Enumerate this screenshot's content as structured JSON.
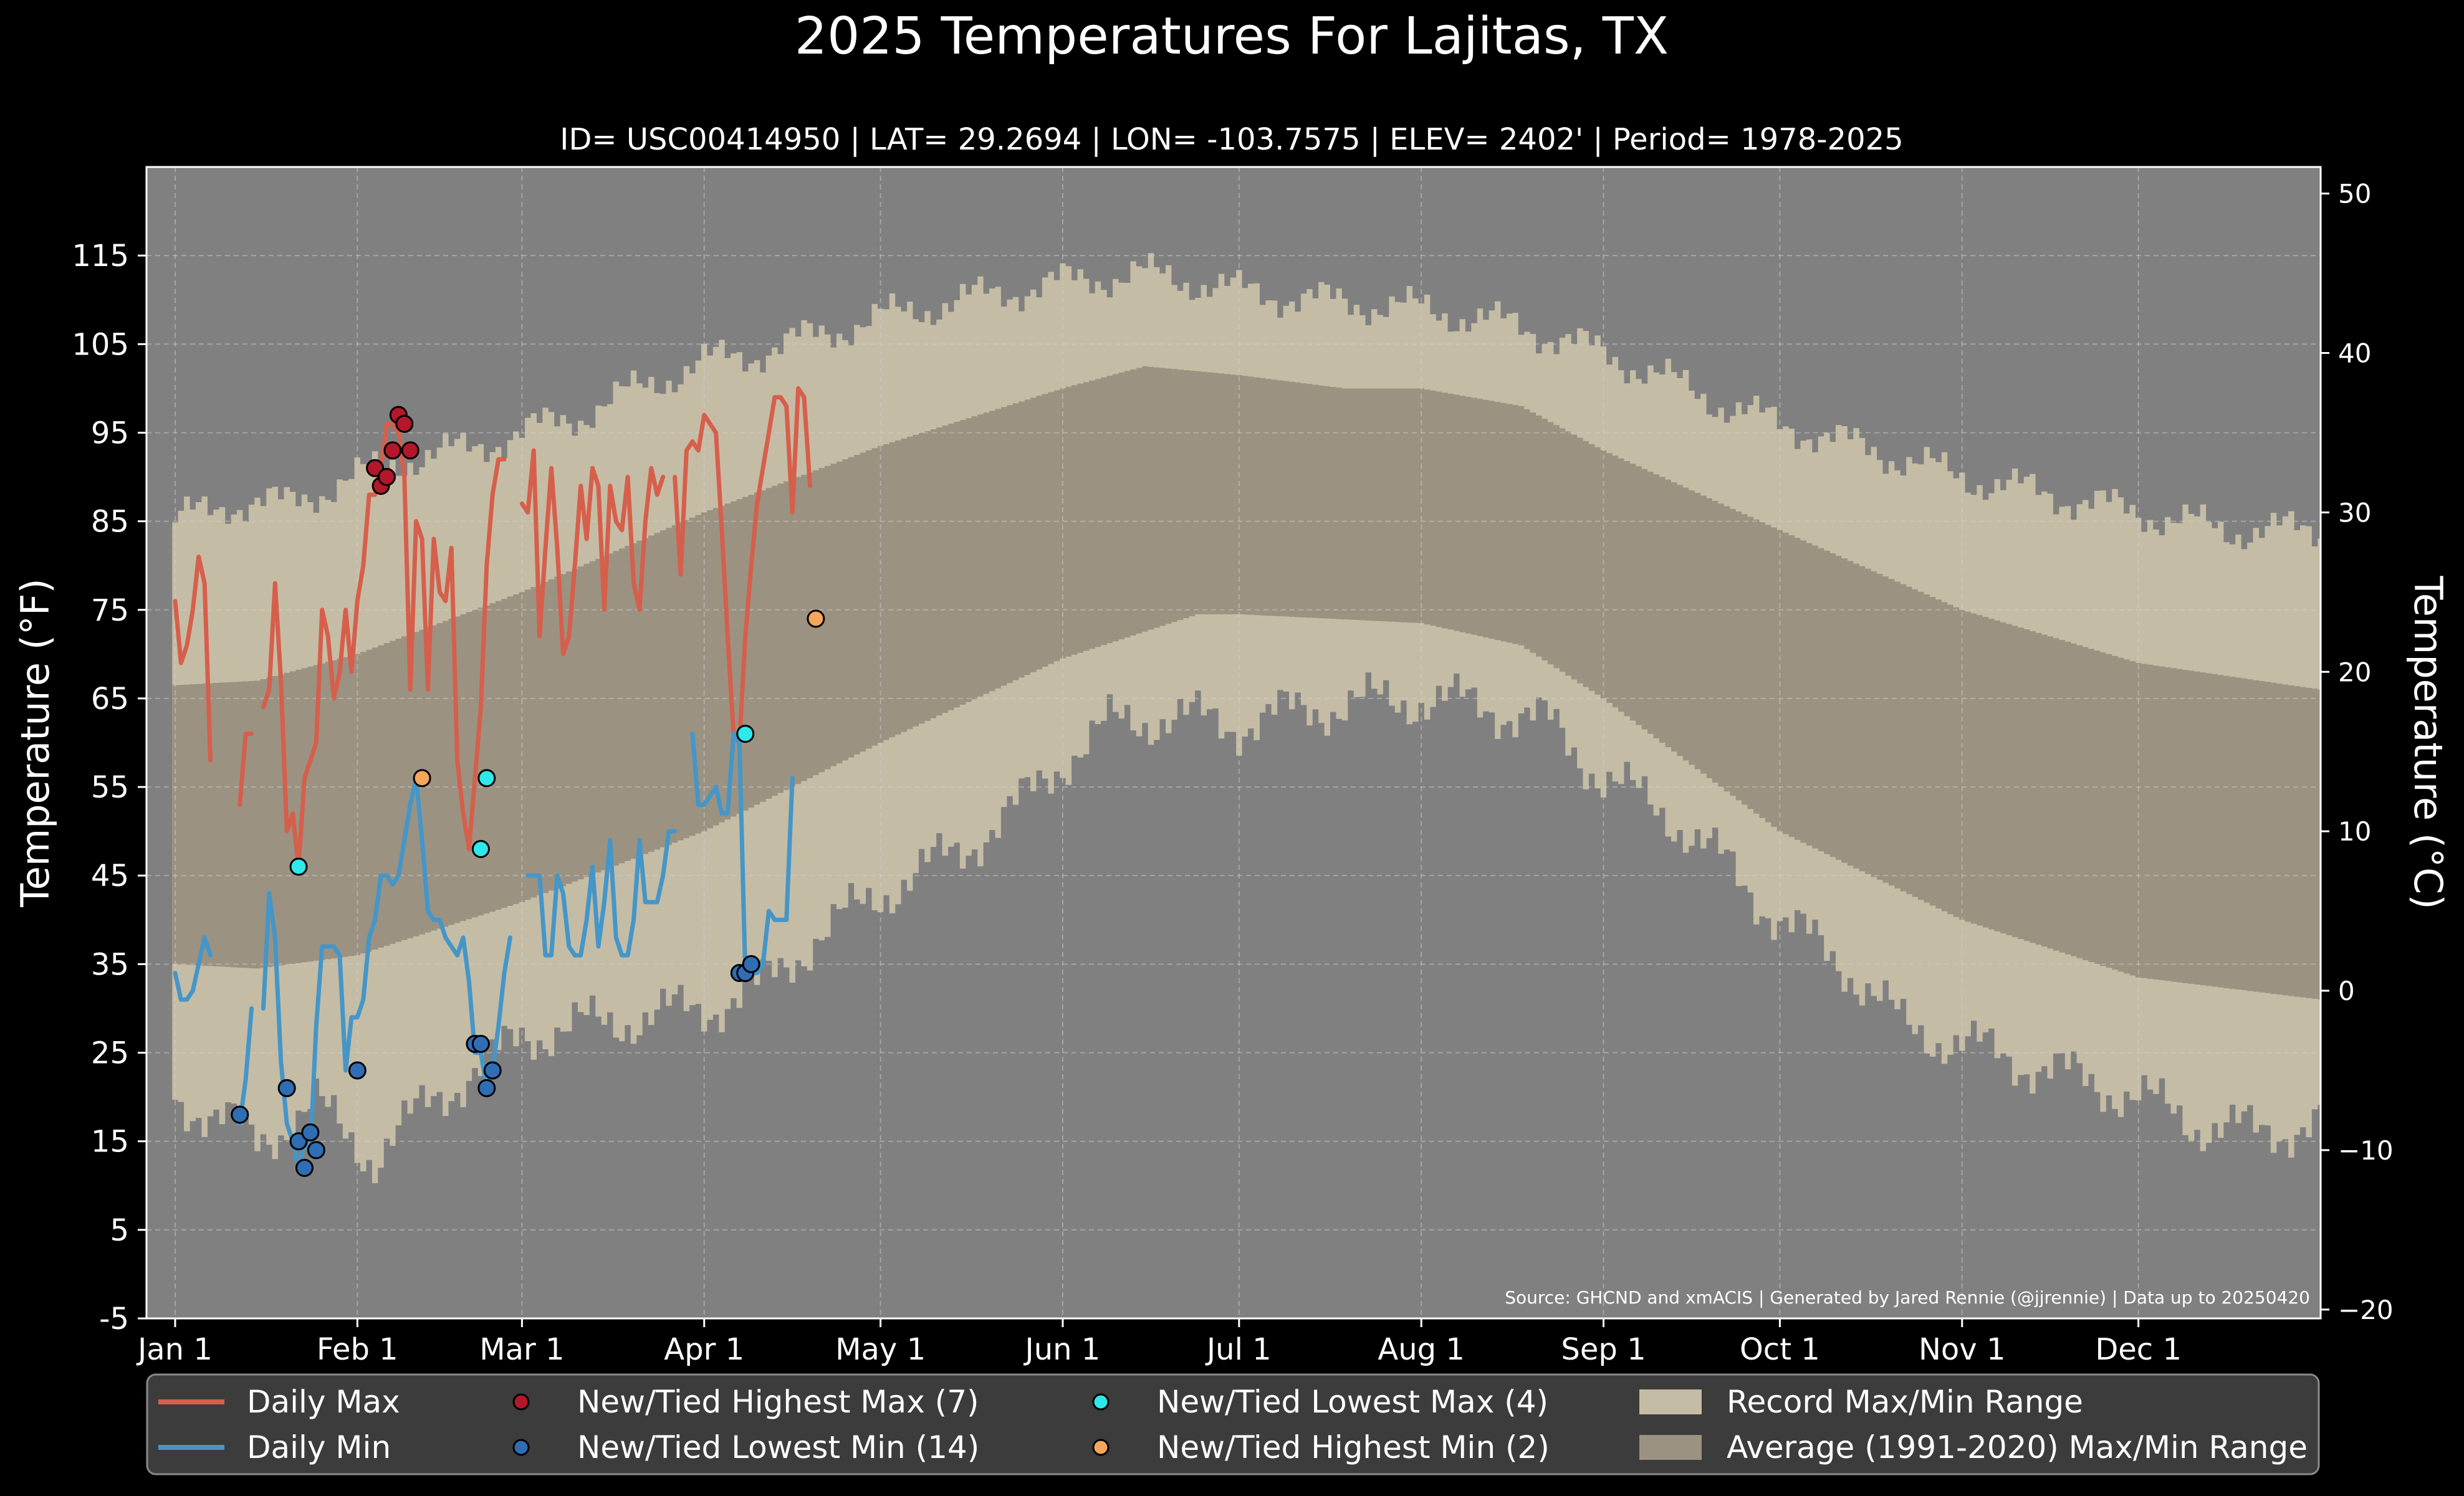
{
  "chart_data": {
    "type": "line",
    "title": "2025 Temperatures For Lajitas, TX",
    "subtitle": "ID= USC00414950 | LAT= 29.2694 | LON= -103.7575 | ELEV= 2402' | Period= 1978-2025",
    "ylabel_left": "Temperature ($^\\circ$F)",
    "ylabel_right": "Temperature ($^\\circ$C)",
    "ylabel_left_text": "Temperature (°F)",
    "ylabel_right_text": "Temperature (°C)",
    "source": "Source: GHCND and xmACIS | Generated by Jared Rennie (@jjrennie) | Data up to 20250420",
    "xlim": [
      1,
      366
    ],
    "ylim": [
      -5,
      125
    ],
    "ylim_c": [
      -20,
      51.67
    ],
    "grid": true,
    "legend_position": "bottom",
    "x_ticks": [
      {
        "day": 1,
        "label": "Jan 1"
      },
      {
        "day": 32,
        "label": "Feb 1"
      },
      {
        "day": 60,
        "label": "Mar 1"
      },
      {
        "day": 91,
        "label": "Apr 1"
      },
      {
        "day": 121,
        "label": "May 1"
      },
      {
        "day": 152,
        "label": "Jun 1"
      },
      {
        "day": 182,
        "label": "Jul 1"
      },
      {
        "day": 213,
        "label": "Aug 1"
      },
      {
        "day": 244,
        "label": "Sep 1"
      },
      {
        "day": 274,
        "label": "Oct 1"
      },
      {
        "day": 305,
        "label": "Nov 1"
      },
      {
        "day": 335,
        "label": "Dec 1"
      }
    ],
    "y_ticks_f": [
      -5,
      5,
      15,
      25,
      35,
      45,
      55,
      65,
      75,
      85,
      95,
      105,
      115
    ],
    "y_ticks_c": [
      -20,
      -10,
      0,
      10,
      20,
      30,
      40,
      50
    ],
    "colors": {
      "background": "#000000",
      "plot_background": "#808080",
      "record_range": "#c5bca5",
      "normal_range": "#9b9282",
      "daily_max": "#d65f4c",
      "daily_min": "#4596c8",
      "highest_max": "#b3172a",
      "lowest_min": "#2f6db5",
      "lowest_max": "#2ee8ea",
      "highest_min": "#f4a65a",
      "legend_background": "#3c3c3c"
    },
    "record_max_profile": [
      [
        1,
        85
      ],
      [
        10,
        87
      ],
      [
        20,
        87
      ],
      [
        32,
        90
      ],
      [
        40,
        92
      ],
      [
        50,
        93
      ],
      [
        60,
        95
      ],
      [
        70,
        97
      ],
      [
        80,
        100
      ],
      [
        91,
        103
      ],
      [
        100,
        104
      ],
      [
        110,
        106
      ],
      [
        121,
        108
      ],
      [
        135,
        110
      ],
      [
        152,
        112
      ],
      [
        165,
        113
      ],
      [
        175,
        112
      ],
      [
        182,
        111
      ],
      [
        195,
        110
      ],
      [
        213,
        109
      ],
      [
        230,
        107
      ],
      [
        244,
        104
      ],
      [
        255,
        101
      ],
      [
        265,
        98
      ],
      [
        274,
        96
      ],
      [
        290,
        93
      ],
      [
        305,
        90
      ],
      [
        320,
        88
      ],
      [
        335,
        86
      ],
      [
        350,
        84
      ],
      [
        366,
        84
      ]
    ],
    "record_min_profile": [
      [
        1,
        20
      ],
      [
        10,
        17
      ],
      [
        15,
        15
      ],
      [
        25,
        19
      ],
      [
        35,
        13
      ],
      [
        45,
        20
      ],
      [
        55,
        24
      ],
      [
        60,
        27
      ],
      [
        70,
        28
      ],
      [
        80,
        29
      ],
      [
        91,
        30
      ],
      [
        100,
        32
      ],
      [
        110,
        38
      ],
      [
        121,
        43
      ],
      [
        135,
        48
      ],
      [
        145,
        53
      ],
      [
        152,
        58
      ],
      [
        160,
        62
      ],
      [
        170,
        63
      ],
      [
        182,
        62
      ],
      [
        195,
        64
      ],
      [
        213,
        65
      ],
      [
        225,
        64
      ],
      [
        235,
        62
      ],
      [
        244,
        56
      ],
      [
        255,
        52
      ],
      [
        265,
        46
      ],
      [
        274,
        40
      ],
      [
        285,
        35
      ],
      [
        295,
        28
      ],
      [
        305,
        26
      ],
      [
        315,
        24
      ],
      [
        325,
        22
      ],
      [
        335,
        20
      ],
      [
        345,
        17
      ],
      [
        355,
        16
      ],
      [
        366,
        17
      ]
    ],
    "normal_max_profile": [
      [
        1,
        66.5
      ],
      [
        15,
        67
      ],
      [
        32,
        70
      ],
      [
        60,
        77
      ],
      [
        91,
        86
      ],
      [
        121,
        93.5
      ],
      [
        152,
        100
      ],
      [
        166,
        102.5
      ],
      [
        182,
        101.5
      ],
      [
        200,
        100
      ],
      [
        213,
        100
      ],
      [
        230,
        98
      ],
      [
        244,
        93
      ],
      [
        274,
        84
      ],
      [
        305,
        75
      ],
      [
        335,
        69
      ],
      [
        366,
        66
      ]
    ],
    "normal_min_profile": [
      [
        1,
        35
      ],
      [
        15,
        34.5
      ],
      [
        32,
        36
      ],
      [
        60,
        42
      ],
      [
        91,
        50
      ],
      [
        121,
        60
      ],
      [
        152,
        69.5
      ],
      [
        175,
        74.5
      ],
      [
        182,
        74.5
      ],
      [
        213,
        73.5
      ],
      [
        230,
        71
      ],
      [
        244,
        65
      ],
      [
        260,
        57
      ],
      [
        274,
        50
      ],
      [
        305,
        40
      ],
      [
        335,
        33.5
      ],
      [
        366,
        31
      ]
    ],
    "series": [
      {
        "name": "Daily Max",
        "x": [
          1,
          2,
          3,
          4,
          5,
          6,
          7,
          8,
          9,
          null,
          12,
          13,
          14,
          15,
          16,
          17,
          18,
          19,
          20,
          21,
          22,
          23,
          24,
          25,
          26,
          27,
          28,
          29,
          30,
          31,
          32,
          33,
          34,
          35,
          36,
          37,
          38,
          39,
          40,
          41,
          42,
          43,
          44,
          45,
          46,
          47,
          48,
          49,
          50,
          51,
          52,
          53,
          54,
          55,
          56,
          57,
          58,
          59,
          60,
          61,
          62,
          63,
          64,
          65,
          66,
          67,
          68,
          69,
          70,
          71,
          72,
          73,
          74,
          75,
          76,
          77,
          78,
          79,
          80,
          81,
          82,
          83,
          84,
          null,
          86,
          87,
          88,
          89,
          90,
          91,
          92,
          93,
          94,
          95,
          96,
          97,
          98,
          99,
          100,
          101,
          102,
          103,
          104,
          105,
          106,
          107,
          108,
          109
        ],
        "y": [
          76,
          69,
          71,
          75,
          81,
          78,
          58,
          null,
          null,
          null,
          53,
          61,
          61,
          null,
          64,
          66,
          78,
          67,
          50,
          52,
          46,
          56,
          58,
          60,
          75,
          72,
          65,
          68,
          75,
          68,
          76,
          80,
          88,
          88,
          91,
          96,
          96,
          95,
          90,
          66,
          85,
          83,
          66,
          83,
          77,
          76,
          82,
          58,
          52,
          48,
          56,
          64,
          80,
          88,
          92,
          92,
          null,
          null,
          87,
          86,
          93,
          72,
          82,
          91,
          82,
          70,
          72,
          80,
          89,
          83,
          91,
          89,
          75,
          89,
          85,
          84,
          90,
          78,
          75,
          85,
          91,
          88,
          90,
          null,
          90,
          79,
          93,
          94,
          93,
          97,
          96,
          95,
          84,
          72,
          61,
          60,
          72,
          80,
          87,
          91,
          95,
          99,
          99,
          98,
          86,
          100,
          99,
          89
        ],
        "y_fixed": [
          76,
          69,
          71,
          75,
          81,
          78,
          58,
          null,
          null,
          null,
          53,
          61,
          61,
          null,
          64,
          66,
          78,
          67,
          50,
          52,
          46,
          56,
          58,
          60,
          75,
          72,
          65,
          68,
          75,
          68,
          76,
          80,
          88,
          88,
          91,
          96,
          96,
          95,
          90,
          66,
          85,
          83,
          66,
          83,
          77,
          76,
          82,
          58,
          52,
          48,
          56,
          64,
          80,
          88,
          92,
          92,
          null,
          null,
          87,
          86,
          93,
          72,
          82,
          91,
          82,
          70,
          72,
          80,
          89,
          83,
          91,
          89,
          75,
          89,
          85,
          84,
          90,
          78,
          75,
          85,
          91,
          88,
          90,
          null,
          90,
          79,
          93,
          94,
          93,
          97,
          96,
          95,
          84,
          72,
          61,
          60,
          72,
          80,
          87,
          91,
          95,
          99,
          99,
          98,
          86,
          100,
          99,
          89
        ]
      },
      {
        "name": "Daily Min",
        "x": [
          1,
          2,
          3,
          4,
          5,
          6,
          7,
          8,
          9,
          10,
          11,
          12,
          13,
          14,
          15,
          16,
          17,
          18,
          19,
          20,
          21,
          22,
          23,
          24,
          25,
          26,
          27,
          28,
          29,
          30,
          31,
          32,
          33,
          34,
          35,
          36,
          37,
          38,
          39,
          40,
          41,
          42,
          43,
          44,
          45,
          46,
          47,
          48,
          49,
          50,
          51,
          52,
          53,
          54,
          55,
          56,
          57,
          58,
          59,
          60,
          61,
          62,
          63,
          64,
          65,
          66,
          67,
          68,
          69,
          70,
          71,
          72,
          73,
          74,
          75,
          76,
          77,
          78,
          79,
          80,
          81,
          82,
          83,
          84,
          85,
          86,
          87,
          88,
          89,
          90,
          91,
          92,
          93,
          94,
          95,
          96,
          97,
          98,
          99,
          100,
          101,
          102,
          103,
          104,
          105,
          106,
          107,
          108,
          109
        ],
        "y": [
          34,
          31,
          31,
          32,
          35,
          38,
          36,
          null,
          null,
          null,
          18,
          17,
          22,
          30,
          null,
          30,
          43,
          38,
          24,
          17,
          15,
          12,
          15,
          14,
          28,
          37,
          37,
          37,
          36,
          23,
          29,
          29,
          31,
          38,
          40,
          45,
          45,
          44,
          45,
          49,
          53,
          56,
          49,
          41,
          40,
          40,
          38,
          37,
          36,
          38,
          33,
          25,
          25,
          21,
          23,
          28,
          34,
          38,
          null,
          null,
          45,
          45,
          45,
          36,
          36,
          45,
          43,
          37,
          36,
          36,
          40,
          46,
          37,
          42,
          49,
          38,
          36,
          36,
          40,
          49,
          42,
          42,
          42,
          45,
          50,
          50,
          null,
          null,
          61,
          53,
          53,
          54,
          55,
          52,
          52,
          61,
          60,
          34,
          34,
          34,
          35,
          41,
          40,
          40,
          40,
          56,
          null,
          null,
          null
        ],
        "y_fixed": []
      }
    ],
    "markers": [
      {
        "name": "New/Tied Highest Max (7)",
        "count": 7,
        "points": [
          [
            35,
            91
          ],
          [
            36,
            89
          ],
          [
            37,
            90
          ],
          [
            38,
            93
          ],
          [
            39,
            97
          ],
          [
            40,
            96
          ],
          [
            41,
            93
          ]
        ]
      },
      {
        "name": "New/Tied Lowest Min (14)",
        "count": 14,
        "points": [
          [
            12,
            18
          ],
          [
            20,
            21
          ],
          [
            22,
            15
          ],
          [
            23,
            12
          ],
          [
            24,
            16
          ],
          [
            25,
            14
          ],
          [
            32,
            23
          ],
          [
            52,
            26
          ],
          [
            53,
            26
          ],
          [
            54,
            21
          ],
          [
            55,
            23
          ],
          [
            97,
            34
          ],
          [
            98,
            34
          ],
          [
            99,
            35
          ]
        ]
      },
      {
        "name": "New/Tied Lowest Max (4)",
        "count": 4,
        "points": [
          [
            22,
            46
          ],
          [
            53,
            48
          ],
          [
            54,
            56
          ],
          [
            98,
            61
          ]
        ]
      },
      {
        "name": "New/Tied Highest Min (2)",
        "count": 2,
        "points": [
          [
            43,
            56
          ],
          [
            110,
            74
          ]
        ]
      }
    ],
    "legend": [
      {
        "label": "Daily Max",
        "kind": "line",
        "color_key": "daily_max"
      },
      {
        "label": "Daily Min",
        "kind": "line",
        "color_key": "daily_min"
      },
      {
        "label": "New/Tied Highest Max (7)",
        "kind": "dot",
        "color_key": "highest_max"
      },
      {
        "label": "New/Tied Lowest Min (14)",
        "kind": "dot",
        "color_key": "lowest_min"
      },
      {
        "label": "New/Tied Lowest Max (4)",
        "kind": "dot",
        "color_key": "lowest_max"
      },
      {
        "label": "New/Tied Highest Min (2)",
        "kind": "dot",
        "color_key": "highest_min"
      },
      {
        "label": "Record Max/Min Range",
        "kind": "patch",
        "color_key": "record_range"
      },
      {
        "label": "Average (1991-2020) Max/Min Range",
        "kind": "patch",
        "color_key": "normal_range"
      }
    ]
  }
}
